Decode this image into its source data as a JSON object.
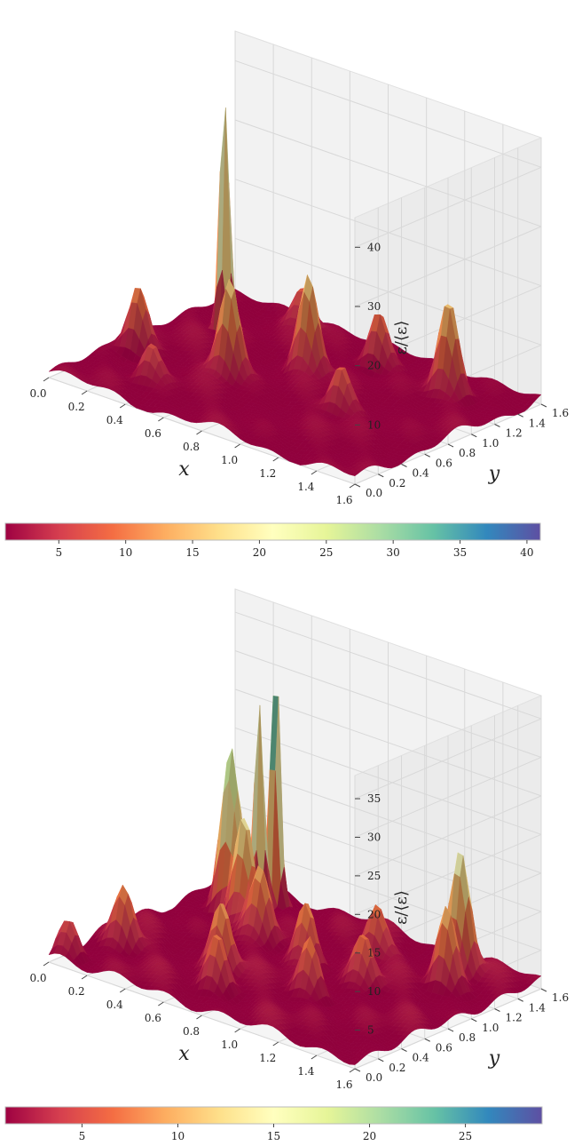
{
  "chart_data": [
    {
      "type": "surface3d",
      "colormap": "Spectral_r",
      "xlabel": "x",
      "ylabel": "y",
      "zlabel": "ε/⟨ε⟩",
      "xlim": [
        0,
        1.6
      ],
      "ylim": [
        0,
        1.6
      ],
      "zlim": [
        0,
        45
      ],
      "x_ticks": [
        "0.0",
        "0.2",
        "0.4",
        "0.6",
        "0.8",
        "1.0",
        "1.2",
        "1.4",
        "1.6"
      ],
      "y_ticks": [
        "0.0",
        "0.2",
        "0.4",
        "0.6",
        "0.8",
        "1.0",
        "1.2",
        "1.4",
        "1.6"
      ],
      "z_ticks": [
        "10",
        "20",
        "30",
        "40"
      ],
      "colorbar": {
        "ticks": [
          "5",
          "10",
          "15",
          "20",
          "25",
          "30",
          "35",
          "40"
        ],
        "range": [
          1,
          41
        ]
      },
      "peaks": [
        {
          "x": 0.22,
          "y": 1.15,
          "z": 44
        },
        {
          "x": 0.55,
          "y": 0.65,
          "z": 18
        },
        {
          "x": 0.75,
          "y": 1.0,
          "z": 17
        },
        {
          "x": 1.3,
          "y": 1.3,
          "z": 16
        },
        {
          "x": 0.1,
          "y": 0.6,
          "z": 12
        },
        {
          "x": 0.9,
          "y": 1.35,
          "z": 11
        },
        {
          "x": 0.45,
          "y": 1.45,
          "z": 8
        },
        {
          "x": 1.1,
          "y": 0.7,
          "z": 9
        },
        {
          "x": 0.35,
          "y": 0.3,
          "z": 7
        }
      ]
    },
    {
      "type": "surface3d",
      "colormap": "Spectral_r",
      "xlabel": "x",
      "ylabel": "y",
      "zlabel": "ε/⟨ε⟩",
      "xlim": [
        0,
        1.6
      ],
      "ylim": [
        0,
        1.6
      ],
      "zlim": [
        0,
        38
      ],
      "x_ticks": [
        "0.0",
        "0.2",
        "0.4",
        "0.6",
        "0.8",
        "1.0",
        "1.2",
        "1.4",
        "1.6"
      ],
      "y_ticks": [
        "0.0",
        "0.2",
        "0.4",
        "0.6",
        "0.8",
        "1.0",
        "1.2",
        "1.4",
        "1.6"
      ],
      "z_ticks": [
        "5",
        "10",
        "15",
        "20",
        "25",
        "30",
        "35"
      ],
      "colorbar": {
        "ticks": [
          "5",
          "10",
          "15",
          "20",
          "25"
        ],
        "range": [
          1,
          29
        ]
      },
      "peaks": [
        {
          "x": 0.3,
          "y": 1.45,
          "z": 36
        },
        {
          "x": 0.28,
          "y": 1.35,
          "z": 30
        },
        {
          "x": 0.22,
          "y": 1.2,
          "z": 22
        },
        {
          "x": 0.35,
          "y": 1.1,
          "z": 14
        },
        {
          "x": 1.3,
          "y": 1.4,
          "z": 17
        },
        {
          "x": 1.35,
          "y": 1.2,
          "z": 11
        },
        {
          "x": 0.6,
          "y": 0.5,
          "z": 10
        },
        {
          "x": 0.8,
          "y": 0.9,
          "z": 9
        },
        {
          "x": 0.5,
          "y": 1.0,
          "z": 10
        },
        {
          "x": 1.0,
          "y": 0.6,
          "z": 8
        },
        {
          "x": 0.15,
          "y": 0.4,
          "z": 9
        },
        {
          "x": 0.95,
          "y": 1.25,
          "z": 8
        },
        {
          "x": 1.1,
          "y": 0.9,
          "z": 7
        },
        {
          "x": 0.7,
          "y": 0.3,
          "z": 8
        },
        {
          "x": 0.05,
          "y": 0.1,
          "z": 6
        }
      ]
    }
  ]
}
